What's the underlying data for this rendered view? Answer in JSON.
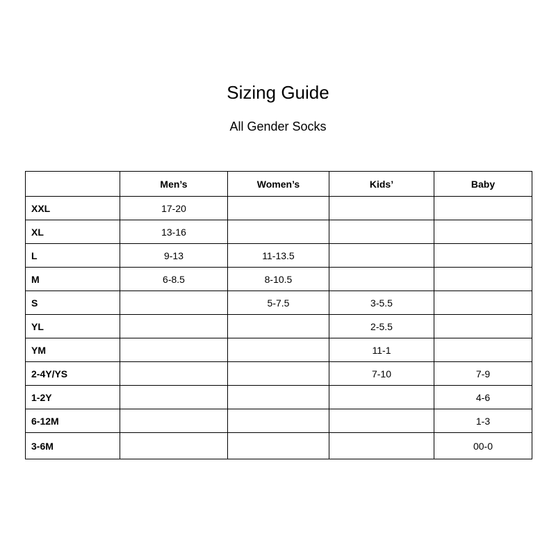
{
  "title": "Sizing Guide",
  "subtitle": "All Gender Socks",
  "table": {
    "headers": [
      "",
      "Men’s",
      "Women’s",
      "Kids’",
      "Baby"
    ],
    "rows": [
      [
        "XXL",
        "17-20",
        "",
        "",
        ""
      ],
      [
        "XL",
        "13-16",
        "",
        "",
        ""
      ],
      [
        "L",
        "9-13",
        "11-13.5",
        "",
        ""
      ],
      [
        "M",
        "6-8.5",
        "8-10.5",
        "",
        ""
      ],
      [
        "S",
        "",
        "5-7.5",
        "3-5.5",
        ""
      ],
      [
        "YL",
        "",
        "",
        "2-5.5",
        ""
      ],
      [
        "YM",
        "",
        "",
        "11-1",
        ""
      ],
      [
        "2-4Y/YS",
        "",
        "",
        "7-10",
        "7-9"
      ],
      [
        "1-2Y",
        "",
        "",
        "",
        "4-6"
      ],
      [
        "6-12M",
        "",
        "",
        "",
        "1-3"
      ],
      [
        "3-6M",
        "",
        "",
        "",
        "00-0"
      ]
    ]
  }
}
